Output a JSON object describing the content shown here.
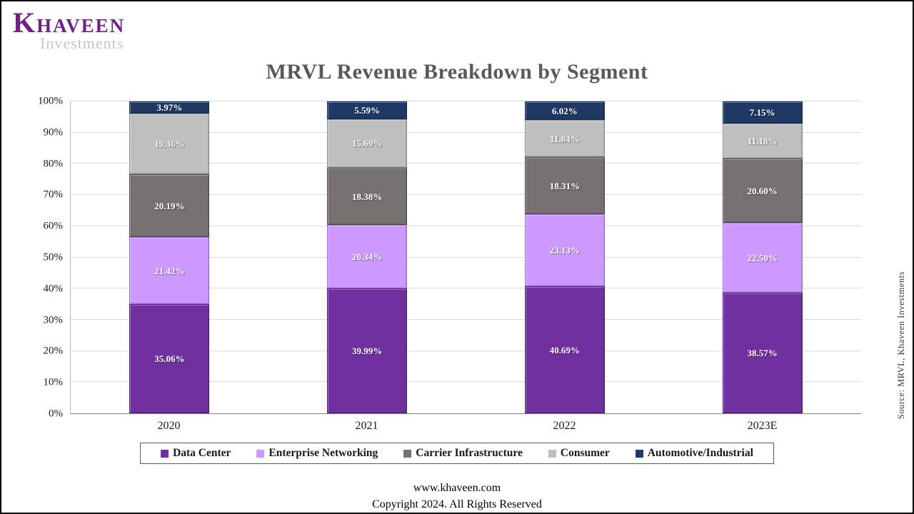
{
  "logo": {
    "name": "Khaveen",
    "subtitle": "Investments",
    "brand_color": "#702082"
  },
  "source_note": "Source: MRVL, Khaveen Investments",
  "footer": {
    "website": "www.khaveen.com",
    "copyright": "Copyright 2024. All Rights Reserved"
  },
  "chart_data": {
    "type": "bar",
    "stacked": true,
    "title": "MRVL Revenue Breakdown by Segment",
    "xlabel": "",
    "ylabel": "",
    "categories": [
      "2020",
      "2021",
      "2022",
      "2023E"
    ],
    "series": [
      {
        "name": "Data Center",
        "color": "#7030A0",
        "border_color": "#4c1f70",
        "label_color": "#ffffff",
        "values": [
          35.06,
          39.99,
          40.69,
          38.57
        ]
      },
      {
        "name": "Enterprise Networking",
        "color": "#CC99FF",
        "border_color": "#9a6fd0",
        "label_color": "#ffffff",
        "values": [
          21.42,
          20.34,
          23.13,
          22.5
        ]
      },
      {
        "name": "Carrier Infrastructure",
        "color": "#767171",
        "border_color": "#4d4949",
        "label_color": "#ffffff",
        "values": [
          20.19,
          18.38,
          18.31,
          20.6
        ]
      },
      {
        "name": "Consumer",
        "color": "#BFBFBF",
        "border_color": "#8c8c8c",
        "label_color": "#f7f7f7",
        "values": [
          19.36,
          15.69,
          11.84,
          11.18
        ]
      },
      {
        "name": "Automotive/Industrial",
        "color": "#1F3864",
        "border_color": "#14244280",
        "label_color": "#ffffff",
        "values": [
          3.97,
          5.59,
          6.02,
          7.15
        ]
      }
    ],
    "y_ticks": [
      "0%",
      "10%",
      "20%",
      "30%",
      "40%",
      "50%",
      "60%",
      "70%",
      "80%",
      "90%",
      "100%"
    ],
    "ylim": [
      0,
      100
    ],
    "value_format": "0.00%",
    "grid": true,
    "legend_position": "bottom"
  }
}
